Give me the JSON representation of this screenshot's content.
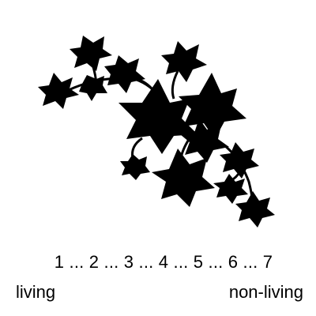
{
  "image": {
    "icon": "ivy-vine-silhouette",
    "fill_color": "#000000",
    "background": "#ffffff"
  },
  "scale": {
    "text": "1 ... 2 ... 3 ... 4 ... 5 ... 6 ... 7",
    "left_label": "living",
    "right_label": "non-living"
  }
}
